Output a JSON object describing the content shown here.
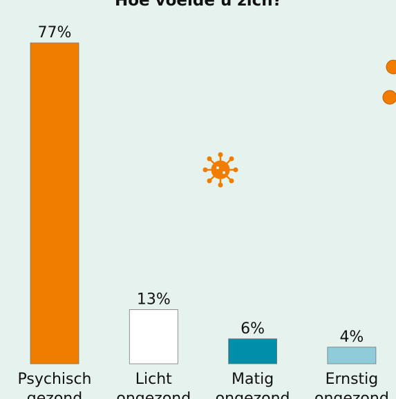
{
  "chart_data": {
    "type": "bar",
    "title": "Hoe voelde u zich?",
    "categories": [
      "Psychisch gezond",
      "Licht ongezond",
      "Matig ongezond",
      "Ernstig ongezond"
    ],
    "values": [
      77,
      13,
      6,
      4
    ],
    "value_labels": [
      "77%",
      "13%",
      "6%",
      "4%"
    ],
    "colors": [
      "#f07d00",
      "#ffffff",
      "#008ea9",
      "#8fcbd9"
    ],
    "ylim": [
      0,
      80
    ]
  }
}
